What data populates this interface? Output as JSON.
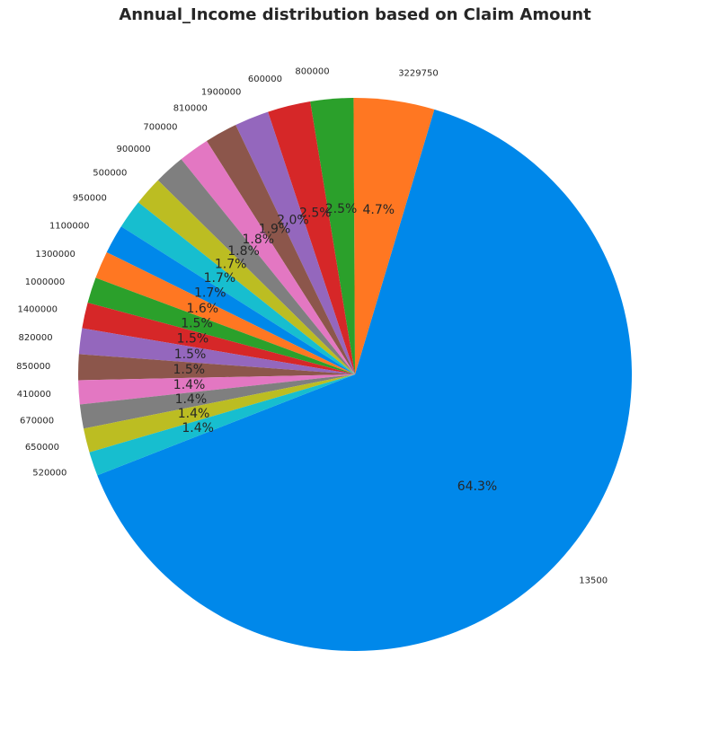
{
  "chart_data": {
    "type": "pie",
    "title": "Annual_Income distribution based on Claim Amount",
    "slices": [
      {
        "label": "13500",
        "value": 64.3,
        "pct_text": "64.3%",
        "color": "#0088ea"
      },
      {
        "label": "3229750",
        "value": 4.7,
        "pct_text": "4.7%",
        "color": "#ff7722"
      },
      {
        "label": "800000",
        "value": 2.5,
        "pct_text": "2.5%",
        "color": "#2ba02b"
      },
      {
        "label": "600000",
        "value": 2.5,
        "pct_text": "2.5%",
        "color": "#d62728"
      },
      {
        "label": "1900000",
        "value": 2.0,
        "pct_text": "2.0%",
        "color": "#9467bd"
      },
      {
        "label": "810000",
        "value": 1.9,
        "pct_text": "1.9%",
        "color": "#8c564b"
      },
      {
        "label": "700000",
        "value": 1.8,
        "pct_text": "1.8%",
        "color": "#e377c2"
      },
      {
        "label": "900000",
        "value": 1.8,
        "pct_text": "1.8%",
        "color": "#7f7f7f"
      },
      {
        "label": "500000",
        "value": 1.7,
        "pct_text": "1.7%",
        "color": "#bcbd22"
      },
      {
        "label": "950000",
        "value": 1.7,
        "pct_text": "1.7%",
        "color": "#17becf"
      },
      {
        "label": "1100000",
        "value": 1.7,
        "pct_text": "1.7%",
        "color": "#0088ea"
      },
      {
        "label": "1300000",
        "value": 1.6,
        "pct_text": "1.6%",
        "color": "#ff7722"
      },
      {
        "label": "1000000",
        "value": 1.5,
        "pct_text": "1.5%",
        "color": "#2ba02b"
      },
      {
        "label": "1400000",
        "value": 1.5,
        "pct_text": "1.5%",
        "color": "#d62728"
      },
      {
        "label": "820000",
        "value": 1.5,
        "pct_text": "1.5%",
        "color": "#9467bd"
      },
      {
        "label": "850000",
        "value": 1.5,
        "pct_text": "1.5%",
        "color": "#8c564b"
      },
      {
        "label": "410000",
        "value": 1.4,
        "pct_text": "1.4%",
        "color": "#e377c2"
      },
      {
        "label": "670000",
        "value": 1.4,
        "pct_text": "1.4%",
        "color": "#7f7f7f"
      },
      {
        "label": "650000",
        "value": 1.4,
        "pct_text": "1.4%",
        "color": "#bcbd22"
      },
      {
        "label": "520000",
        "value": 1.4,
        "pct_text": "1.4%",
        "color": "#17becf"
      }
    ]
  }
}
